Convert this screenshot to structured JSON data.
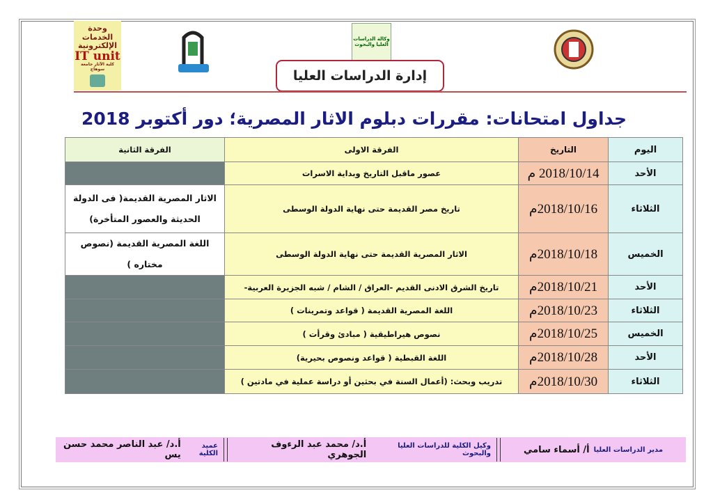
{
  "header": {
    "logo_it_unit": {
      "line1": "وحدة الخدمات",
      "line2": "الإلكترونية",
      "line3": "IT unit",
      "line4": "كلية الآثار جامعة سوهاج"
    },
    "logo_graduate_studies": "وكالة الدراسات العليا والبحوث",
    "banner": "إدارة الدراسات العليا"
  },
  "title": "جداول امتحانات: مقررات دبلوم الاثار المصرية؛ دور أكتوبر 2018",
  "table": {
    "headers": {
      "day": "اليوم",
      "date": "التاريخ",
      "first": "الفرقة الاولى",
      "second": "الفرقة الثانية"
    },
    "rows": [
      {
        "day": "الأحد",
        "date": "2018/10/14 م",
        "first": "عصور ماقبل التاريخ وبداية الاسرات",
        "second": ""
      },
      {
        "day": "الثلاثاء",
        "date": "2018/10/16م",
        "first": "تاريخ مصر القديمة حتى نهاية الدولة الوسطى",
        "second": "الاثار المصرية القديمة( فى الدولة الحديثة والعصور المتأخرة)"
      },
      {
        "day": "الخميس",
        "date": "2018/10/18م",
        "first": "الاثار المصرية القديمة حتى نهاية الدولة الوسطى",
        "second": "اللغة المصرية القديمة (نصوص مختاره )"
      },
      {
        "day": "الأحد",
        "date": "2018/10/21م",
        "first": "تاريخ الشرق الادنى القديم -العراق / الشام / شبه الجزيرة العربية-",
        "second": ""
      },
      {
        "day": "الثلاثاء",
        "date": "2018/10/23م",
        "first": "اللغة المصرية القديمة ( قواعد وتمرينات )",
        "second": ""
      },
      {
        "day": "الخميس",
        "date": "2018/10/25م",
        "first": "نصوص هيراطيقية ( مبادئ وقرأت )",
        "second": ""
      },
      {
        "day": "الأحد",
        "date": "2018/10/28م",
        "first": "اللغة القبطية ( قواعد ونصوص بحيرية)",
        "second": ""
      },
      {
        "day": "الثلاثاء",
        "date": "2018/10/30م",
        "first": "تدريب وبحث: (أعمال السنة في بحثين أو دراسة عملية في مادتين )",
        "second": ""
      }
    ]
  },
  "footer": [
    {
      "role": "مدير الدراسات العليا",
      "name": "أ/ أسماء سامي"
    },
    {
      "role": "وكيل الكلية للدراسات العليا والبحوث",
      "name": "أ.د/ محمد عبد الرءوف الجوهري"
    },
    {
      "role": "عميد الكلية",
      "name": "أ.د/ عبد الناصر محمد حسن يس"
    }
  ],
  "colors": {
    "title": "#1b1e80",
    "banner_border": "#b0263a",
    "day_col": "#d9f3f3",
    "date_col": "#f6c8ae",
    "first_col": "#fbfbc0",
    "empty_cell": "#6f7f80",
    "footer_bg": "#f3c6f3"
  }
}
